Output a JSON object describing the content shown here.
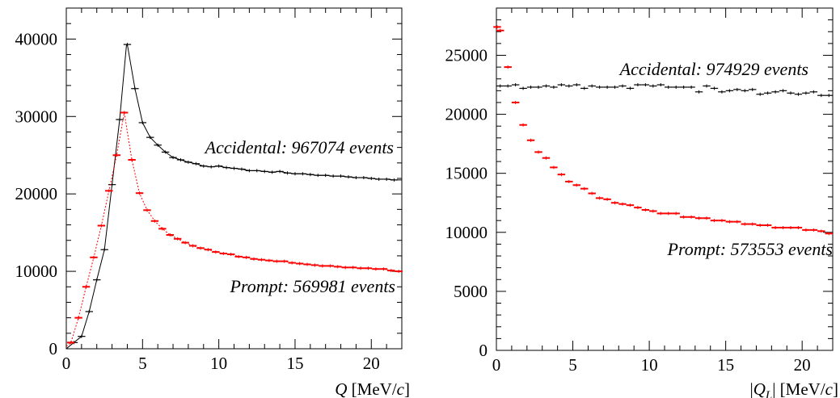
{
  "colors": {
    "accidental": "#000000",
    "prompt": "#ff0000"
  },
  "chart_data": [
    {
      "type": "scatter",
      "xlabel_parts": [
        "Q",
        " [MeV/",
        "c",
        "]"
      ],
      "xlim": [
        0,
        22
      ],
      "ylim": [
        0,
        44000
      ],
      "x_ticks": [
        "0",
        "5",
        "10",
        "15",
        "20"
      ],
      "y_ticks": [
        "0",
        "10000",
        "20000",
        "30000",
        "40000"
      ],
      "grid": false,
      "annotations": [
        "Accidental:  967074 events",
        "Prompt: 569981 events"
      ],
      "series": [
        {
          "key": "accidental",
          "x": [
            0.5,
            1,
            1.5,
            2,
            2.5,
            3,
            3.5,
            4,
            4.5,
            5,
            5.5,
            6,
            6.5,
            7,
            7.5,
            8,
            8.5,
            9,
            9.5,
            10,
            10.5,
            11,
            11.5,
            12,
            12.5,
            13,
            13.5,
            14,
            14.5,
            15,
            15.5,
            16,
            16.5,
            17,
            17.5,
            18,
            18.5,
            19,
            19.5,
            20,
            20.5,
            21,
            21.5
          ],
          "y": [
            800,
            1600,
            4800,
            8900,
            12800,
            21200,
            29600,
            39300,
            33600,
            29200,
            27300,
            26300,
            25400,
            24700,
            24400,
            24100,
            23900,
            23600,
            23500,
            23600,
            23400,
            23300,
            23200,
            23000,
            23000,
            22900,
            22800,
            22900,
            22700,
            22600,
            22600,
            22500,
            22400,
            22400,
            22300,
            22300,
            22200,
            22100,
            22100,
            22000,
            21900,
            21900,
            21800
          ],
          "fit": true,
          "fit_peak": [
            3.95,
            39300
          ]
        },
        {
          "key": "prompt",
          "x": [
            0.3,
            0.8,
            1.3,
            1.8,
            2.3,
            2.8,
            3.3,
            3.8,
            4.3,
            4.8,
            5.3,
            5.8,
            6.3,
            6.8,
            7.3,
            7.8,
            8.3,
            8.8,
            9.3,
            9.8,
            10.3,
            10.8,
            11.3,
            11.8,
            12.3,
            12.8,
            13.3,
            13.8,
            14.3,
            14.8,
            15.3,
            15.8,
            16.3,
            16.8,
            17.3,
            17.8,
            18.3,
            18.8,
            19.3,
            19.8,
            20.3,
            20.8,
            21.3,
            21.8
          ],
          "y": [
            800,
            4000,
            8000,
            11800,
            15900,
            20400,
            25000,
            30500,
            24400,
            20100,
            17900,
            16500,
            15500,
            14700,
            14200,
            13700,
            13300,
            13000,
            12800,
            12500,
            12300,
            12200,
            11900,
            11800,
            11600,
            11500,
            11400,
            11300,
            11300,
            11100,
            11000,
            10900,
            10800,
            10700,
            10700,
            10600,
            10500,
            10500,
            10400,
            10400,
            10300,
            10300,
            10100,
            10000
          ],
          "fit": true
        }
      ]
    },
    {
      "type": "scatter",
      "xlabel_parts": [
        "|",
        "Q",
        "L",
        "| [MeV/",
        "c",
        "]"
      ],
      "xlim": [
        0,
        22
      ],
      "ylim": [
        0,
        29000
      ],
      "x_ticks": [
        "0",
        "5",
        "10",
        "15",
        "20"
      ],
      "y_ticks": [
        "0",
        "5000",
        "10000",
        "15000",
        "20000",
        "25000"
      ],
      "grid": false,
      "annotations": [
        "Accidental:  974929 events",
        "Prompt: 573553 events"
      ],
      "series": [
        {
          "key": "accidental",
          "x": [
            0.25,
            0.75,
            1.25,
            1.75,
            2.25,
            2.75,
            3.25,
            3.75,
            4.25,
            4.75,
            5.25,
            5.75,
            6.25,
            6.75,
            7.25,
            7.75,
            8.25,
            8.75,
            9.25,
            9.75,
            10.25,
            10.75,
            11.25,
            11.75,
            12.25,
            12.75,
            13.25,
            13.75,
            14.25,
            14.75,
            15.25,
            15.75,
            16.25,
            16.75,
            17.25,
            17.75,
            18.25,
            18.75,
            19.25,
            19.75,
            20.25,
            20.75,
            21.25,
            21.75
          ],
          "y": [
            22400,
            22400,
            22500,
            22200,
            22300,
            22300,
            22400,
            22300,
            22500,
            22400,
            22500,
            22200,
            22400,
            22300,
            22300,
            22300,
            22400,
            22200,
            22500,
            22500,
            22400,
            22500,
            22300,
            22300,
            22300,
            22300,
            21900,
            22400,
            22200,
            21900,
            22000,
            22100,
            22000,
            22100,
            21700,
            21800,
            21900,
            22000,
            21800,
            21700,
            21800,
            21900,
            21600,
            21600
          ],
          "fit": false
        },
        {
          "key": "prompt",
          "x": [
            0.25,
            0.75,
            1.25,
            1.75,
            2.25,
            2.75,
            3.25,
            3.75,
            4.25,
            4.75,
            5.25,
            5.75,
            6.25,
            6.75,
            7.25,
            7.75,
            8.25,
            8.75,
            9.25,
            9.75,
            10.25,
            10.75,
            11.25,
            11.75,
            12.25,
            12.75,
            13.25,
            13.75,
            14.25,
            14.75,
            15.25,
            15.75,
            16.25,
            16.75,
            17.25,
            17.75,
            18.25,
            18.75,
            19.25,
            19.75,
            20.25,
            20.75,
            21.25,
            21.75
          ],
          "y": [
            27100,
            24000,
            21000,
            19100,
            17800,
            16800,
            16300,
            15500,
            14900,
            14300,
            14000,
            13700,
            13300,
            12900,
            12800,
            12500,
            12400,
            12300,
            12100,
            11900,
            11800,
            11600,
            11600,
            11600,
            11300,
            11300,
            11200,
            11200,
            11000,
            11000,
            10900,
            10900,
            10700,
            10700,
            10600,
            10600,
            10400,
            10400,
            10400,
            10400,
            10200,
            10200,
            10100,
            9900
          ],
          "fit": false,
          "extra_first_point": [
            0.05,
            27400
          ]
        }
      ]
    }
  ]
}
